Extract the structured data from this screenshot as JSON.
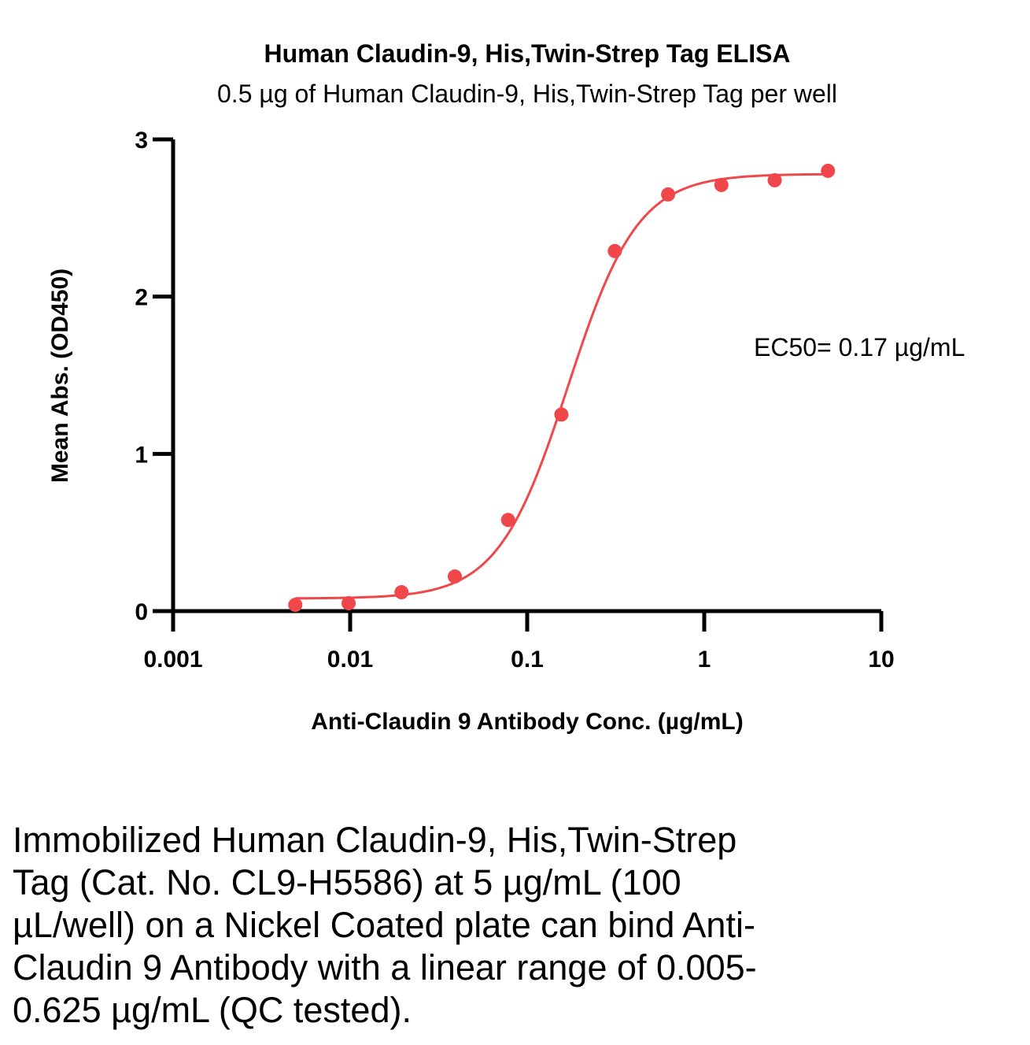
{
  "chart_data": {
    "type": "scatter",
    "title": "Human Claudin-9, His,Twin-Strep Tag ELISA",
    "subtitle": "0.5 µg of Human Claudin-9, His,Twin-Strep Tag per well",
    "xlabel": "Anti-Claudin 9 Antibody Conc. (µg/mL)",
    "ylabel": "Mean Abs. (OD450)",
    "xscale": "log",
    "xlim": [
      0.001,
      10
    ],
    "ylim": [
      0,
      3
    ],
    "xticks": [
      0.001,
      0.01,
      0.1,
      1,
      10
    ],
    "xtick_labels": [
      "0.001",
      "0.01",
      "0.1",
      "1",
      "10"
    ],
    "yticks": [
      0,
      1,
      2,
      3
    ],
    "ytick_labels": [
      "0",
      "1",
      "2",
      "3"
    ],
    "grid": false,
    "color": "#f0474b",
    "series": [
      {
        "x": [
          0.0049,
          0.0098,
          0.0195,
          0.039,
          0.078,
          0.156,
          0.3125,
          0.625,
          1.25,
          2.5,
          5
        ],
        "y": [
          0.04,
          0.05,
          0.12,
          0.22,
          0.58,
          1.25,
          2.29,
          2.65,
          2.71,
          2.74,
          2.8
        ]
      }
    ],
    "fit": {
      "bottom": 0.08,
      "top": 2.78,
      "ec50": 0.17,
      "hill": 2.2
    },
    "annotation": "EC50= 0.17 µg/mL"
  },
  "caption": "Immobilized Human Claudin-9, His,Twin-Strep Tag (Cat. No. CL9-H5586) at 5 µg/mL (100 µL/well) on a Nickel Coated plate can bind Anti-Claudin 9 Antibody with a linear range of 0.005-0.625 µg/mL (QC tested)."
}
